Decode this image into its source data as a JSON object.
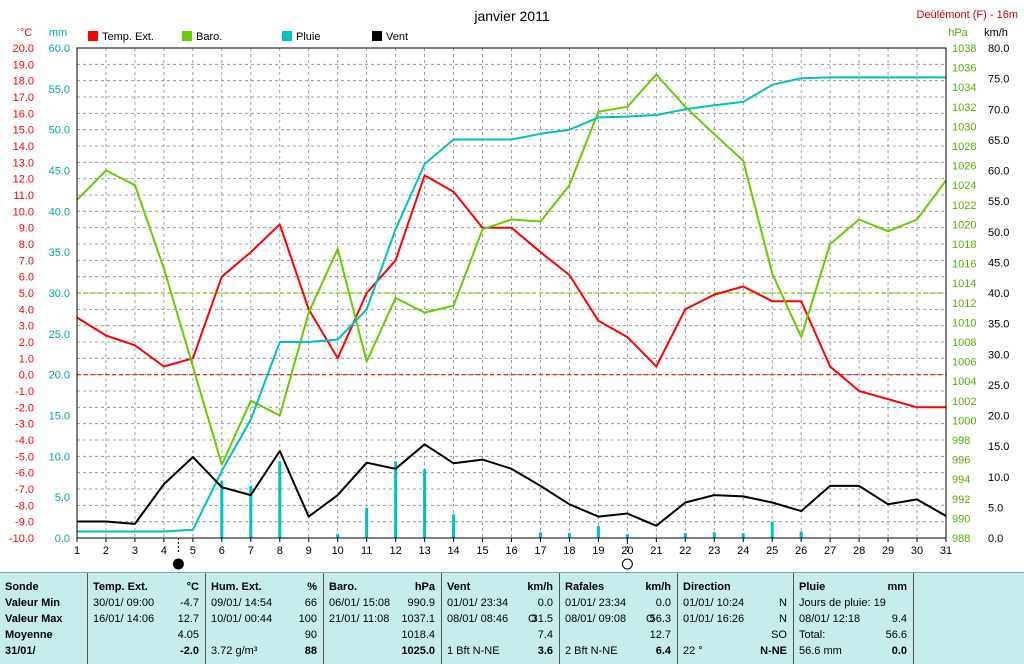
{
  "chart_data": {
    "type": "line",
    "title": "janvier 2011",
    "station": "Deülémont (F) - 16m",
    "x": [
      1,
      2,
      3,
      4,
      5,
      6,
      7,
      8,
      9,
      10,
      11,
      12,
      13,
      14,
      15,
      16,
      17,
      18,
      19,
      20,
      21,
      22,
      23,
      24,
      25,
      26,
      27,
      28,
      29,
      30,
      31
    ],
    "x_ticks": [
      "1",
      "2",
      "3",
      "4",
      "5",
      "6",
      "7",
      "8",
      "9",
      "10",
      "11",
      "12",
      "13",
      "14",
      "15",
      "16",
      "17",
      "18",
      "19",
      "20",
      "21",
      "22",
      "23",
      "24",
      "25",
      "26",
      "27",
      "28",
      "29",
      "30",
      "31"
    ],
    "axes": {
      "temp": {
        "unit": "°C",
        "range": [
          -10,
          20
        ],
        "color": "#ff0000",
        "ticks": [
          "20.0",
          "19.0",
          "18.0",
          "17.0",
          "16.0",
          "15.0",
          "14.0",
          "13.0",
          "12.0",
          "11.0",
          "10.0",
          "9.0",
          "8.0",
          "7.0",
          "6.0",
          "5.0",
          "4.0",
          "3.0",
          "2.0",
          "1.0",
          "0.0",
          "-1.0",
          "-2.0",
          "-3.0",
          "-4.0",
          "-5.0",
          "-6.0",
          "-7.0",
          "-8.0",
          "-9.0",
          "-10.0"
        ]
      },
      "rain": {
        "unit": "mm",
        "range": [
          0,
          60
        ],
        "color": "#00c0c0",
        "ticks": [
          "60.0",
          "55.0",
          "50.0",
          "45.0",
          "40.0",
          "35.0",
          "30.0",
          "25.0",
          "20.0",
          "15.0",
          "10.0",
          "5.0",
          "0.0"
        ]
      },
      "baro": {
        "unit": "hPa",
        "range": [
          988,
          1038
        ],
        "color": "#66cc00",
        "ticks": [
          "1038",
          "1036",
          "1034",
          "1032",
          "1030",
          "1028",
          "1026",
          "1024",
          "1022",
          "1020",
          "1018",
          "1016",
          "1014",
          "1012",
          "1010",
          "1008",
          "1006",
          "1004",
          "1002",
          "1000",
          "998",
          "996",
          "994",
          "992",
          "990",
          "988"
        ]
      },
      "wind": {
        "unit": "km/h",
        "range": [
          0,
          80
        ],
        "color": "#000000",
        "ticks": [
          "80.0",
          "75.0",
          "70.0",
          "65.0",
          "60.0",
          "55.0",
          "50.0",
          "45.0",
          "40.0",
          "35.0",
          "30.0",
          "25.0",
          "20.0",
          "15.0",
          "10.0",
          "5.0",
          "0.0"
        ]
      }
    },
    "legend": [
      {
        "name": "Temp. Ext.",
        "color": "#ff0000"
      },
      {
        "name": "Baro.",
        "color": "#66cc00"
      },
      {
        "name": "Pluie",
        "color": "#00c0c0"
      },
      {
        "name": "Vent",
        "color": "#000000"
      }
    ],
    "series": [
      {
        "name": "Temp. Ext.",
        "axis": "temp",
        "color": "#ff0000",
        "values": [
          3.5,
          2.4,
          1.8,
          0.5,
          1.0,
          6.0,
          7.5,
          9.2,
          4.0,
          1.0,
          5.0,
          7.0,
          12.2,
          11.2,
          9.0,
          9.0,
          7.5,
          6.1,
          3.3,
          2.3,
          0.5,
          4.0,
          4.9,
          5.4,
          4.5,
          4.5,
          0.5,
          -1.0,
          -1.5,
          -2.0,
          -2.0
        ]
      },
      {
        "name": "Baro.",
        "axis": "baro",
        "color": "#66cc00",
        "values": [
          1022.5,
          1025.5,
          1024,
          1015.5,
          1005.5,
          995.5,
          1002,
          1000.5,
          1011,
          1017.5,
          1006,
          1012.5,
          1011,
          1011.7,
          1019.5,
          1020.5,
          1020.3,
          1024,
          1031.5,
          1032,
          1035.3,
          1032,
          1029.2,
          1026.5,
          1015,
          1008.5,
          1018,
          1020.5,
          1019.3,
          1020.5,
          1024.5
        ]
      },
      {
        "name": "Pluie",
        "axis": "rain",
        "color": "#00c0c0",
        "values": [
          0.8,
          0.8,
          0.8,
          0.8,
          1.0,
          8.2,
          14.5,
          24.0,
          24.0,
          24.3,
          28.0,
          37.8,
          45.8,
          48.8,
          48.8,
          48.8,
          49.5,
          50.0,
          51.5,
          51.6,
          51.8,
          52.5,
          53.0,
          53.4,
          55.5,
          56.3,
          56.4,
          56.4,
          56.4,
          56.4,
          56.4
        ]
      },
      {
        "name": "Vent",
        "axis": "wind",
        "color": "#000000",
        "values": [
          2.7,
          2.7,
          2.3,
          8.8,
          13.2,
          8.3,
          7.0,
          14.2,
          3.5,
          7.0,
          12.3,
          11.3,
          15.3,
          12.2,
          12.8,
          11.3,
          8.5,
          5.5,
          3.5,
          4.0,
          2.0,
          5.8,
          7.0,
          6.8,
          5.8,
          4.4,
          8.5,
          8.5,
          5.5,
          6.3,
          3.6
        ]
      }
    ],
    "daily_rain": {
      "axis": "rain",
      "color": "#00c0c0",
      "values": [
        0,
        0,
        0,
        0,
        0,
        7.0,
        6.4,
        9.4,
        0,
        0.5,
        3.7,
        9.4,
        8.4,
        2.9,
        0,
        0,
        0.7,
        0.6,
        1.5,
        0.5,
        0,
        0.6,
        0.7,
        0.6,
        2.0,
        0.8,
        0,
        0,
        0,
        0,
        0
      ]
    },
    "reference_lines": [
      {
        "axis": "temp",
        "value": 0,
        "color": "#ff0000",
        "style": "dashed"
      },
      {
        "axis": "baro",
        "value": 1013,
        "color": "#66cc00",
        "style": "dashed"
      }
    ],
    "markers": [
      {
        "name": "new-moon",
        "day": 4.5,
        "symbol": "●"
      },
      {
        "name": "full-moon",
        "day": 20,
        "symbol": "○"
      }
    ],
    "grid": true
  },
  "table": {
    "labels": {
      "title": "Sonde",
      "min": "Valeur Min",
      "max": "Valeur Max",
      "avg": "Moyenne",
      "date": "31/01/"
    },
    "temp": {
      "title": "Temp. Ext.",
      "unit": "°C",
      "min_date": "30/01/  09:00",
      "min": "-4.7",
      "max_date": "16/01/  14:06",
      "max": "12.7",
      "avg": "4.05",
      "today": "-2.0"
    },
    "hum": {
      "title": "Hum. Ext.",
      "unit": "%",
      "min_date": "09/01/  14:54",
      "min": "66",
      "max_date": "10/01/  00:44",
      "max": "100",
      "avg": "90",
      "abs": "3.72 g/m³",
      "today": "88"
    },
    "baro": {
      "title": "Baro.",
      "unit": "hPa",
      "min_date": "06/01/  15:08",
      "min": "990.9",
      "max_date": "21/01/  11:08",
      "max": "1037.1",
      "avg": "1018.4",
      "today": "1025.0"
    },
    "vent": {
      "title": "Vent",
      "unit": "km/h",
      "min_date": "01/01/  23:34",
      "min": "0.0",
      "max_date": "08/01/  08:46",
      "max_dir": "O",
      "max": "31.5",
      "avg": "7.4",
      "bft": "1 Bft N-NE",
      "today": "3.6"
    },
    "rafales": {
      "title": "Rafales",
      "unit": "km/h",
      "min_date": "01/01/  23:34",
      "min": "0.0",
      "max_date": "08/01/  09:08",
      "max_dir": "O",
      "max": "56.3",
      "avg": "12.7",
      "bft": "2 Bft N-NE",
      "today": "6.4"
    },
    "direction": {
      "title": "Direction",
      "min_date": "01/01/  10:24",
      "min": "N",
      "max_date": "01/01/  16:26",
      "max": "N",
      "avg": "SO",
      "deg": "22 °",
      "today": "N-NE"
    },
    "pluie": {
      "title": "Pluie",
      "unit": "mm",
      "days_label": "Jours de pluie: 19",
      "max_date": "08/01/  12:18",
      "max": "9.4",
      "total_label": "Total:",
      "total": "56.6",
      "month": "56.6 mm",
      "today": "0.0"
    }
  }
}
